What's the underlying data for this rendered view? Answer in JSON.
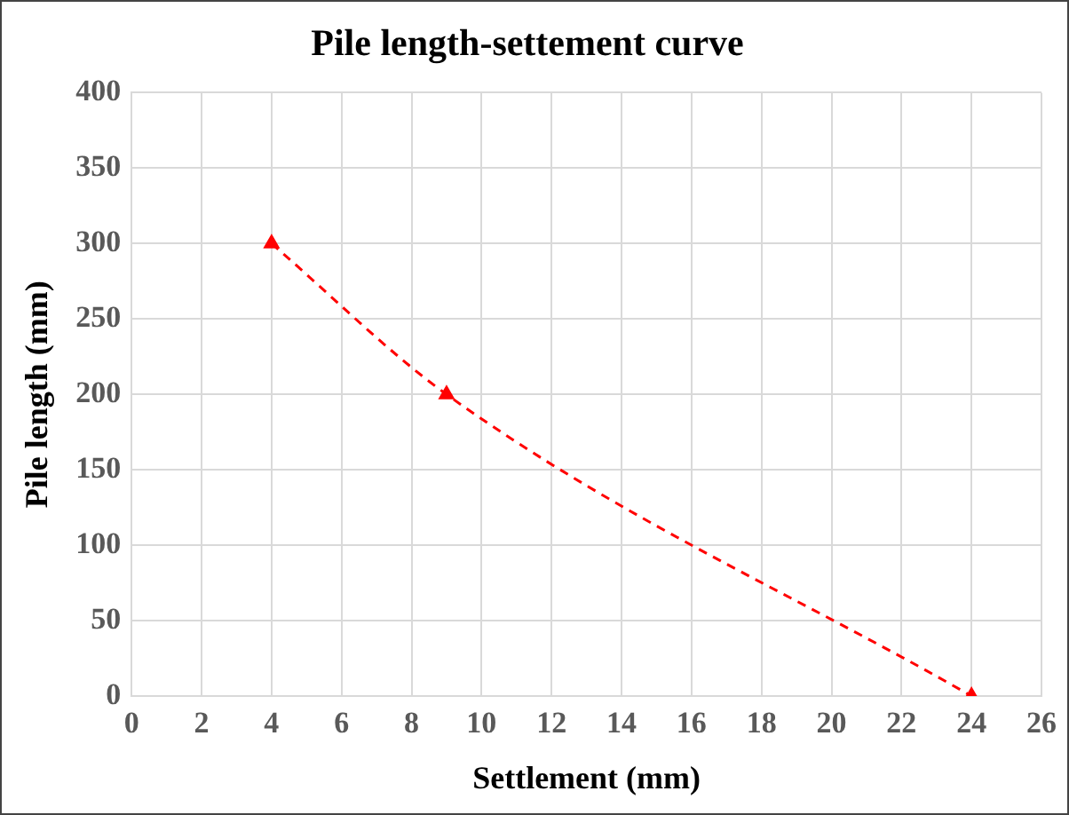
{
  "chart_data": {
    "type": "line",
    "title": "Pile length-settement curve",
    "xlabel": "Settlement (mm)",
    "ylabel": "Pile length (mm)",
    "x": [
      4,
      9,
      24
    ],
    "series": [
      {
        "color": "#ff0000",
        "values": [
          300,
          200,
          0
        ]
      }
    ],
    "xlim": [
      0,
      26
    ],
    "xticks": [
      0,
      2,
      4,
      6,
      8,
      10,
      12,
      14,
      16,
      18,
      20,
      22,
      24,
      26
    ],
    "ylim": [
      0,
      400
    ],
    "yticks": [
      0,
      50,
      100,
      150,
      200,
      250,
      300,
      350,
      400
    ],
    "grid": true,
    "legend": false,
    "marker": "triangle",
    "line_style": "dashed"
  }
}
